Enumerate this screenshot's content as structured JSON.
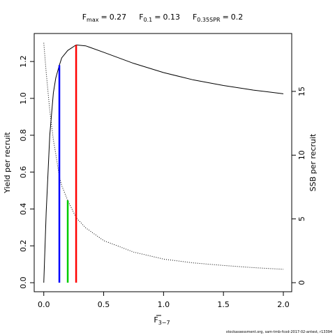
{
  "chart_data": {
    "type": "line",
    "reference_points": [
      {
        "label": "F",
        "subscript": "max",
        "relation": "=",
        "value": 0.27,
        "color": "#ff0000",
        "line_top": 1.29
      },
      {
        "label": "F",
        "subscript": "0.1",
        "relation": "=",
        "value": 0.13,
        "color": "#0000ff",
        "line_top": 1.18
      },
      {
        "label": "F",
        "subscript": "0.35SPR",
        "relation": "=",
        "value": 0.2,
        "color": "#00cc00",
        "line_top": 6.45,
        "axis": "y2"
      }
    ],
    "xlabel": {
      "text": "F",
      "subscript": "3−7"
    },
    "ylabel": "Yield per recruit",
    "y2label": "SSB per recruit",
    "x": [
      0,
      0.02,
      0.05,
      0.08,
      0.1,
      0.13,
      0.15,
      0.2,
      0.27,
      0.35,
      0.5,
      0.75,
      1.0,
      1.25,
      1.5,
      1.75,
      2.0
    ],
    "series": [
      {
        "color": "#000000",
        "style": "solid",
        "values": [
          0,
          0.38,
          0.8,
          1.03,
          1.11,
          1.18,
          1.22,
          1.26,
          1.29,
          1.285,
          1.25,
          1.19,
          1.14,
          1.1,
          1.07,
          1.045,
          1.025
        ]
      },
      {
        "color": "#000000",
        "style": "dotted",
        "axis": "y2",
        "values": [
          18.8,
          16.5,
          13.5,
          11.2,
          10.1,
          8.3,
          7.6,
          6.45,
          5.1,
          4.3,
          3.3,
          2.4,
          1.85,
          1.55,
          1.35,
          1.18,
          1.05
        ]
      }
    ],
    "xlim": [
      -0.08,
      2.07
    ],
    "ylim": [
      -0.049,
      1.352
    ],
    "y2lim": [
      -0.71,
      19.54
    ],
    "xticks": [
      {
        "value": 0,
        "label": "0.0"
      },
      {
        "value": 0.5,
        "label": "0.5"
      },
      {
        "value": 1,
        "label": "1.0"
      },
      {
        "value": 1.5,
        "label": "1.5"
      },
      {
        "value": 2,
        "label": "2.0"
      }
    ],
    "yticks": [
      {
        "value": 0,
        "label": "0.0"
      },
      {
        "value": 0.2,
        "label": "0.2"
      },
      {
        "value": 0.4,
        "label": "0.4"
      },
      {
        "value": 0.6,
        "label": "0.6"
      },
      {
        "value": 0.8,
        "label": "0.8"
      },
      {
        "value": 1.0,
        "label": "1.0"
      },
      {
        "value": 1.2,
        "label": "1.2"
      }
    ],
    "y2ticks": [
      0,
      5,
      10,
      15
    ],
    "footer": "stockassessment.org, sam-tmb-fcod-2017-02-antest, r13394"
  }
}
